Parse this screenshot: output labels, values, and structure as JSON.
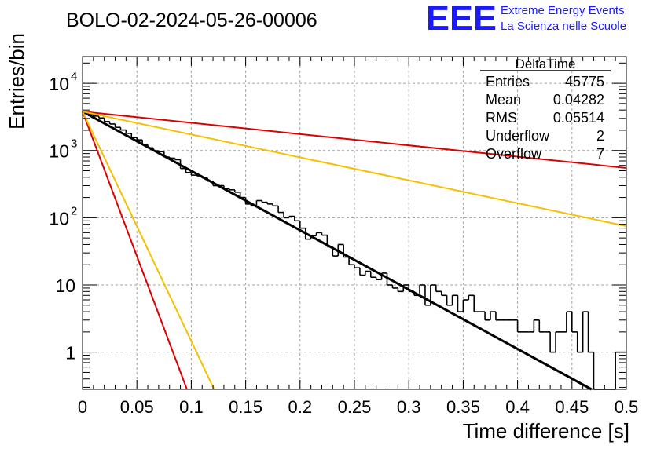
{
  "chart_data": {
    "type": "histogram",
    "title": "BOLO-02-2024-05-26-00006",
    "xlabel": "Time difference [s]",
    "ylabel": "Entries/bin",
    "x_range": [
      0,
      0.5
    ],
    "y_range_log": [
      0.28,
      25000
    ],
    "y_scale": "log",
    "grid": true,
    "x_ticks": [
      "0",
      "0.05",
      "0.1",
      "0.15",
      "0.2",
      "0.25",
      "0.3",
      "0.35",
      "0.4",
      "0.45",
      "0.5"
    ],
    "y_ticks": [
      {
        "value": 1,
        "label": "1"
      },
      {
        "value": 10,
        "label": "10"
      },
      {
        "value": 100,
        "label": "10",
        "exp": "2"
      },
      {
        "value": 1000,
        "label": "10",
        "exp": "3"
      },
      {
        "value": 10000,
        "label": "10",
        "exp": "4"
      }
    ],
    "bin_width": 0.005,
    "counts": [
      3800,
      3450,
      3250,
      3050,
      2700,
      2480,
      2210,
      2020,
      1800,
      1560,
      1440,
      1220,
      1095,
      990,
      960,
      800,
      770,
      730,
      540,
      470,
      430,
      420,
      390,
      350,
      300,
      300,
      270,
      260,
      240,
      200,
      160,
      150,
      180,
      170,
      160,
      150,
      120,
      100,
      105,
      90,
      70,
      48,
      54,
      60,
      55,
      37,
      27,
      40,
      26,
      20,
      18,
      14,
      16,
      13,
      12,
      15,
      10,
      9,
      8,
      10,
      8,
      7,
      10,
      5,
      10,
      8,
      7,
      5,
      7,
      4,
      6,
      7,
      4,
      4,
      3,
      4,
      3,
      3,
      3,
      3,
      2,
      2,
      2,
      3,
      2,
      2,
      1,
      2,
      2,
      4,
      2,
      1,
      4,
      1,
      0.2,
      0.2,
      0.2,
      0.2,
      1,
      1
    ],
    "fits": [
      {
        "color": "#000000",
        "y0": 3800,
        "y_at_x1": 0.28,
        "x1": 0.468,
        "x_end": 0.468
      },
      {
        "color": "#dd0000",
        "y0": 3800,
        "y_at_x1": 0.28,
        "x1": 0.096,
        "x_end": 0.096
      },
      {
        "color": "#f5c000",
        "y0": 3800,
        "y_at_x1": 0.28,
        "x1": 0.121,
        "x_end": 0.121
      },
      {
        "color": "#dd0000",
        "y0": 3800,
        "y_at_x1": 550,
        "x1": 0.5,
        "x_end": 0.5
      },
      {
        "color": "#f5c000",
        "y0": 3800,
        "y_at_x1": 75,
        "x1": 0.5,
        "x_end": 0.5
      }
    ],
    "stats": {
      "title": "DeltaTime",
      "rows": [
        {
          "label": "Entries",
          "value": "45775"
        },
        {
          "label": "Mean",
          "value": "0.04282"
        },
        {
          "label": "RMS",
          "value": "0.05514"
        },
        {
          "label": "Underflow",
          "value": "2"
        },
        {
          "label": "Overflow",
          "value": "7"
        }
      ]
    }
  },
  "logo": {
    "text": "EEE",
    "line1": "Extreme Energy Events",
    "line2": "La Scienza nelle Scuole",
    "color": "#1a1aff"
  }
}
